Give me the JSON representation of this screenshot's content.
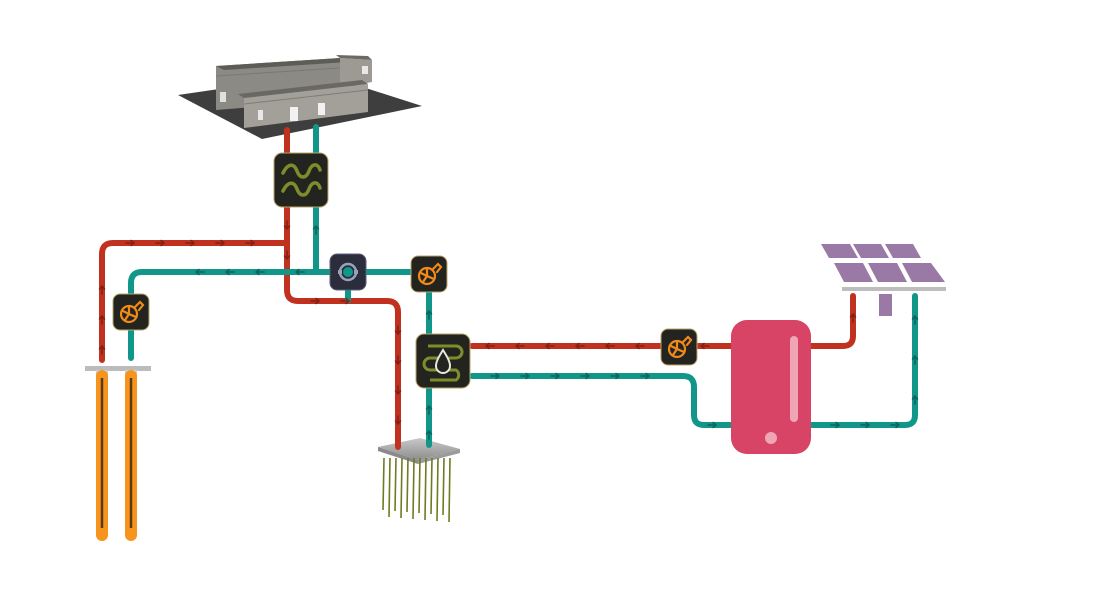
{
  "colors": {
    "hot": "#c0321f",
    "cold": "#10978a",
    "arrow_hot": "#7a1d12",
    "arrow_cold": "#0a5e55",
    "icon_bg": "#23241f",
    "icon_border": "#b9a46a",
    "icon_olive": "#7e8d2c",
    "icon_orange": "#f28a1a",
    "tank": "#d84465",
    "tank_light": "#eea6b6",
    "solar": "#9b79a6",
    "probe": "#f7941d",
    "probe_core": "#5a3a12",
    "pile_line": "#6f7a23",
    "platform": "#a9a9a9",
    "building_wall": "#8c8a84",
    "building_roof": "#5e5c57",
    "building_ground": "#3e3e3e"
  },
  "icons": {
    "heat_exchanger": "heat-exchanger-icon",
    "ground_exchanger": "ground-heat-exchanger-icon",
    "valve": "valve-icon",
    "pump": "pump-icon"
  },
  "components": [
    "building",
    "heat-exchanger",
    "ground-heat-exchanger",
    "three-way-valve",
    "circulation-pump",
    "storage-tank",
    "solar-collector",
    "borehole-probes",
    "energy-piles"
  ]
}
